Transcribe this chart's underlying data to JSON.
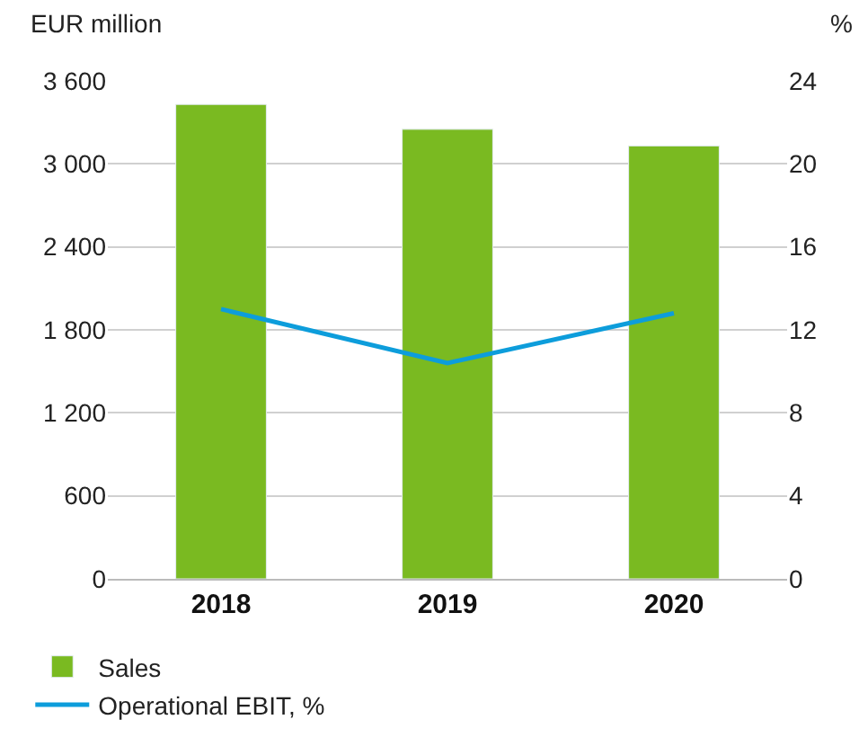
{
  "chart_data": {
    "type": "bar",
    "ylabel": "EUR million",
    "y2label": "%",
    "categories": [
      "2018",
      "2019",
      "2020"
    ],
    "series": [
      {
        "name": "Sales",
        "color": "#7aba21",
        "values": [
          3430,
          3250,
          3130
        ]
      },
      {
        "name": "Operational EBIT, %",
        "type": "line",
        "axis": "y2",
        "color": "#0d9ddb",
        "values": [
          13.0,
          10.4,
          12.8
        ]
      }
    ],
    "ylim": [
      0,
      3600
    ],
    "yticks": [
      0,
      600,
      {
        "value": 1200,
        "label": "1 200"
      },
      {
        "value": 1800,
        "label": "1 800"
      },
      {
        "value": 2400,
        "label": "2 400"
      },
      {
        "value": 3000,
        "label": "3 000"
      },
      {
        "value": 3600,
        "label": "3 600"
      }
    ],
    "y2lim": [
      0,
      24
    ],
    "y2ticks": [
      0,
      4,
      8,
      12,
      16,
      20,
      24
    ],
    "grid": "y",
    "legend": "bottom left",
    "marker": "none",
    "line_style": "solid"
  }
}
